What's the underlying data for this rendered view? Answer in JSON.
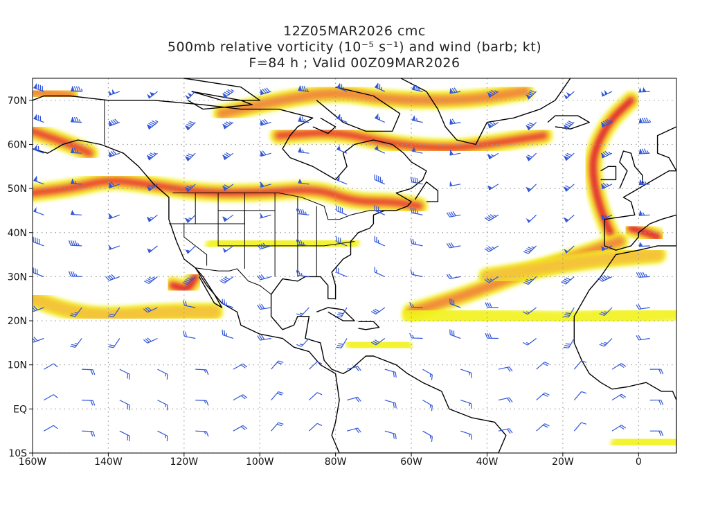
{
  "title": {
    "line1": "12Z05MAR2026 cmc",
    "line2": "500mb relative vorticity (10⁻⁵ s⁻¹) and wind (barb; kt)",
    "line3": "F=84 h ; Valid 00Z09MAR2026"
  },
  "map": {
    "lon_range": [
      -160,
      10
    ],
    "lat_range": [
      -10,
      75
    ],
    "x_ticks": [
      {
        "lon": -160,
        "label": "160W"
      },
      {
        "lon": -140,
        "label": "140W"
      },
      {
        "lon": -120,
        "label": "120W"
      },
      {
        "lon": -100,
        "label": "100W"
      },
      {
        "lon": -80,
        "label": "80W"
      },
      {
        "lon": -60,
        "label": "60W"
      },
      {
        "lon": -40,
        "label": "40W"
      },
      {
        "lon": -20,
        "label": "20W"
      },
      {
        "lon": 0,
        "label": "0"
      }
    ],
    "y_ticks": [
      {
        "lat": 70,
        "label": "70N"
      },
      {
        "lat": 60,
        "label": "60N"
      },
      {
        "lat": 50,
        "label": "50N"
      },
      {
        "lat": 40,
        "label": "40N"
      },
      {
        "lat": 30,
        "label": "30N"
      },
      {
        "lat": 20,
        "label": "20N"
      },
      {
        "lat": 10,
        "label": "10N"
      },
      {
        "lat": 0,
        "label": "EQ"
      },
      {
        "lat": -10,
        "label": "10S"
      }
    ],
    "grid": true,
    "colors": {
      "level1": "#f2f21a",
      "level2": "#f5c23a",
      "level3": "#f08a3a",
      "level4": "#e8402e",
      "level5": "#d81830",
      "barb": "#2f54d8",
      "coast": "#000000",
      "grid": "#9a9a9a"
    }
  },
  "chart_data": {
    "type": "contour",
    "field": "500mb relative vorticity",
    "bands": [
      {
        "name": "Alaska-Canada polar jet",
        "path": [
          [
            -160,
            49
          ],
          [
            -150,
            50
          ],
          [
            -140,
            52
          ],
          [
            -130,
            51
          ],
          [
            -115,
            49
          ],
          [
            -100,
            49
          ],
          [
            -85,
            50
          ],
          [
            -75,
            47
          ],
          [
            -65,
            47
          ],
          [
            -58,
            46
          ]
        ],
        "strength": 4
      },
      {
        "name": "North Atlantic trough",
        "path": [
          [
            -7,
            39
          ],
          [
            -10,
            45
          ],
          [
            -12,
            52
          ],
          [
            -12,
            58
          ],
          [
            -8,
            65
          ],
          [
            -2,
            70
          ]
        ],
        "strength": 5
      },
      {
        "name": "Baja California low",
        "path": [
          [
            -123,
            28
          ],
          [
            -119,
            27
          ],
          [
            -117,
            30
          ]
        ],
        "strength": 5
      },
      {
        "name": "Subtropical east Pacific",
        "path": [
          [
            -160,
            25
          ],
          [
            -150,
            22
          ],
          [
            -140,
            21
          ],
          [
            -125,
            22
          ],
          [
            -112,
            22
          ]
        ],
        "strength": 2
      },
      {
        "name": "Labrador Sea",
        "path": [
          [
            -95,
            62
          ],
          [
            -80,
            63
          ],
          [
            -65,
            60
          ],
          [
            -50,
            59
          ],
          [
            -40,
            60
          ],
          [
            -25,
            62
          ]
        ],
        "strength": 4
      },
      {
        "name": "Mid Atlantic shear line",
        "path": [
          [
            -60,
            22
          ],
          [
            -45,
            26
          ],
          [
            -30,
            31
          ],
          [
            -15,
            35
          ],
          [
            -5,
            38
          ]
        ],
        "strength": 3
      },
      {
        "name": "Tropical Atlantic",
        "path": [
          [
            -60,
            21
          ],
          [
            -40,
            21
          ],
          [
            -20,
            20
          ],
          [
            -5,
            21
          ],
          [
            10,
            22
          ]
        ],
        "strength": 1
      },
      {
        "name": "Arctic Canada",
        "path": [
          [
            -110,
            67
          ],
          [
            -95,
            70
          ],
          [
            -80,
            72
          ],
          [
            -65,
            70
          ],
          [
            -45,
            70
          ],
          [
            -30,
            72
          ]
        ],
        "strength": 3
      },
      {
        "name": "Gulf of Alaska",
        "path": [
          [
            -160,
            63
          ],
          [
            -150,
            60
          ],
          [
            -145,
            58
          ]
        ],
        "strength": 4
      },
      {
        "name": "Arctic north of Alaska",
        "path": [
          [
            -160,
            72
          ],
          [
            -150,
            71
          ]
        ],
        "strength": 3
      },
      {
        "name": "Southern Rockies",
        "path": [
          [
            -112,
            37
          ],
          [
            -100,
            37
          ],
          [
            -88,
            37
          ],
          [
            -76,
            38
          ]
        ],
        "strength": 1
      },
      {
        "name": "Subtropical east Atlantic",
        "path": [
          [
            -40,
            30
          ],
          [
            -25,
            32
          ],
          [
            -10,
            34
          ],
          [
            5,
            35
          ]
        ],
        "strength": 2
      },
      {
        "name": "Iberia cutoff",
        "path": [
          [
            -2,
            41
          ],
          [
            2,
            40
          ],
          [
            5,
            39
          ]
        ],
        "strength": 5
      },
      {
        "name": "Caribbean patch",
        "path": [
          [
            -75,
            15
          ],
          [
            -62,
            14
          ]
        ],
        "strength": 1
      },
      {
        "name": "Equatorial west Africa",
        "path": [
          [
            -5,
            -8
          ],
          [
            2,
            -8
          ],
          [
            10,
            -7
          ]
        ],
        "strength": 1
      }
    ]
  }
}
